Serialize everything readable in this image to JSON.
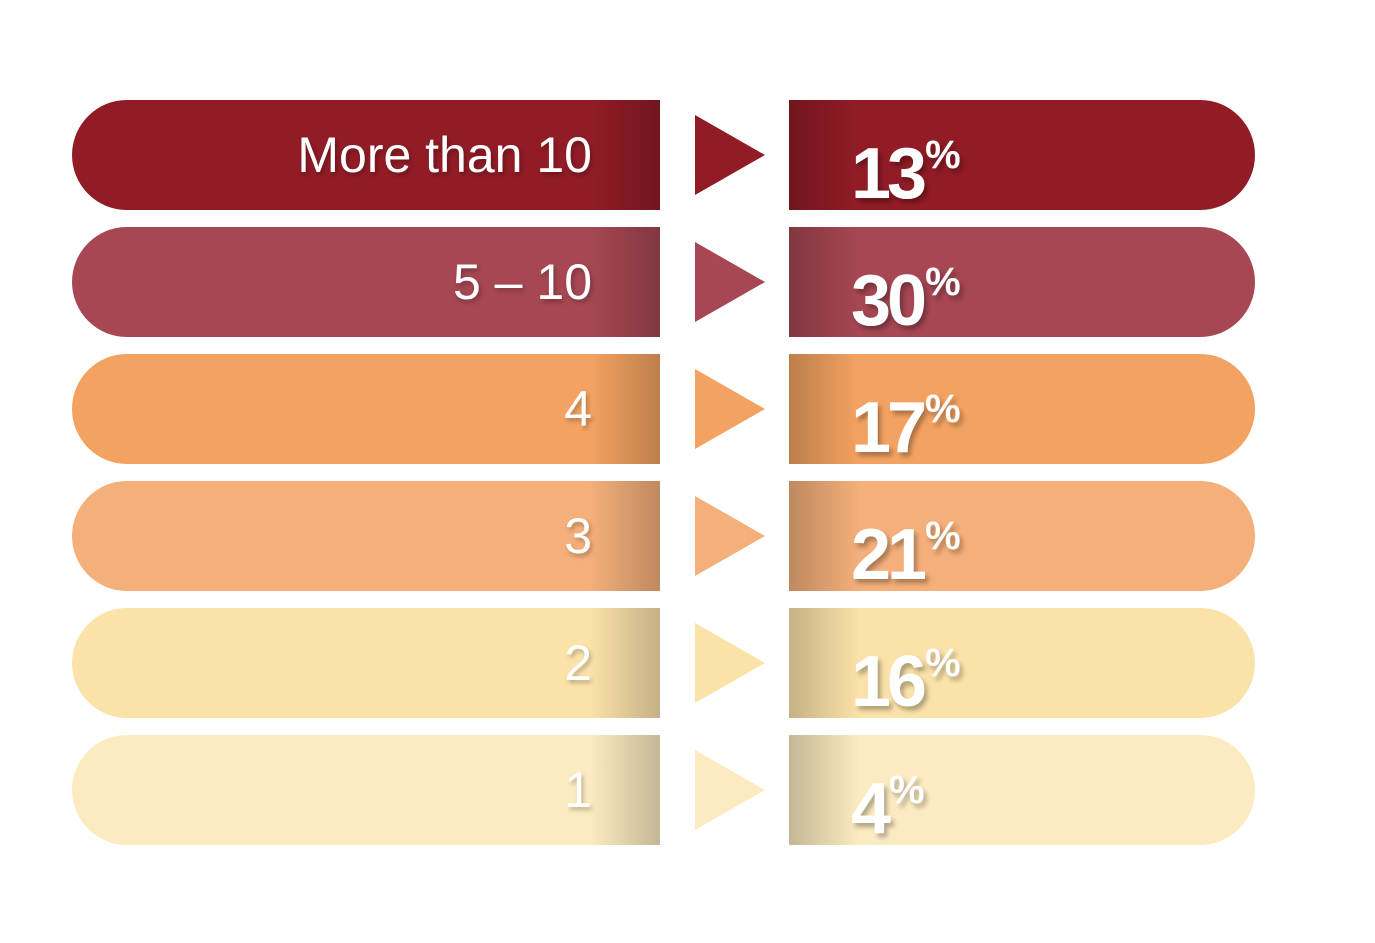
{
  "chart_data": {
    "type": "bar",
    "title": "",
    "categories": [
      "More than 10",
      "5 – 10",
      "4",
      "3",
      "2",
      "1"
    ],
    "values": [
      13,
      30,
      17,
      21,
      16,
      4
    ],
    "unit": "%",
    "colors": [
      "#911c26",
      "#a64753",
      "#f3a261",
      "#f4af7a",
      "#fbe2a9",
      "#fcebc0"
    ]
  }
}
